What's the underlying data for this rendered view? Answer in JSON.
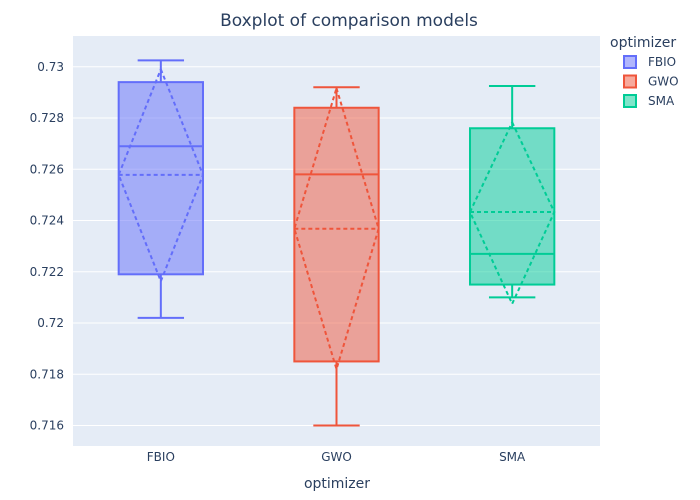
{
  "chart_data": {
    "type": "box",
    "title": "Boxplot of comparison models",
    "xlabel": "optimizer",
    "ylabel": "",
    "categories": [
      "FBIO",
      "GWO",
      "SMA"
    ],
    "ylim": [
      0.7152,
      0.7312
    ],
    "yticks": [
      0.716,
      0.718,
      0.72,
      0.722,
      0.724,
      0.726,
      0.728,
      0.73
    ],
    "ytick_labels": [
      "0.716",
      "0.718",
      "0.72",
      "0.722",
      "0.724",
      "0.726",
      "0.728",
      "0.73"
    ],
    "grid": true,
    "legend": {
      "title": "optimizer",
      "position": "top-right"
    },
    "series": [
      {
        "name": "FBIO",
        "color": "#636efa",
        "min": 0.7202,
        "q1": 0.7219,
        "median": 0.7269,
        "q3": 0.7294,
        "max": 0.73025,
        "mean": 0.72578,
        "sd_low": 0.72163,
        "sd_high": 0.7299
      },
      {
        "name": "GWO",
        "color": "#ef553b",
        "min": 0.716,
        "q1": 0.7185,
        "median": 0.7258,
        "q3": 0.7284,
        "max": 0.7292,
        "mean": 0.72368,
        "sd_low": 0.7182,
        "sd_high": 0.72916
      },
      {
        "name": "SMA",
        "color": "#00cc96",
        "min": 0.721,
        "q1": 0.7215,
        "median": 0.7227,
        "q3": 0.7276,
        "max": 0.72925,
        "mean": 0.72433,
        "sd_low": 0.72075,
        "sd_high": 0.72783
      }
    ]
  }
}
